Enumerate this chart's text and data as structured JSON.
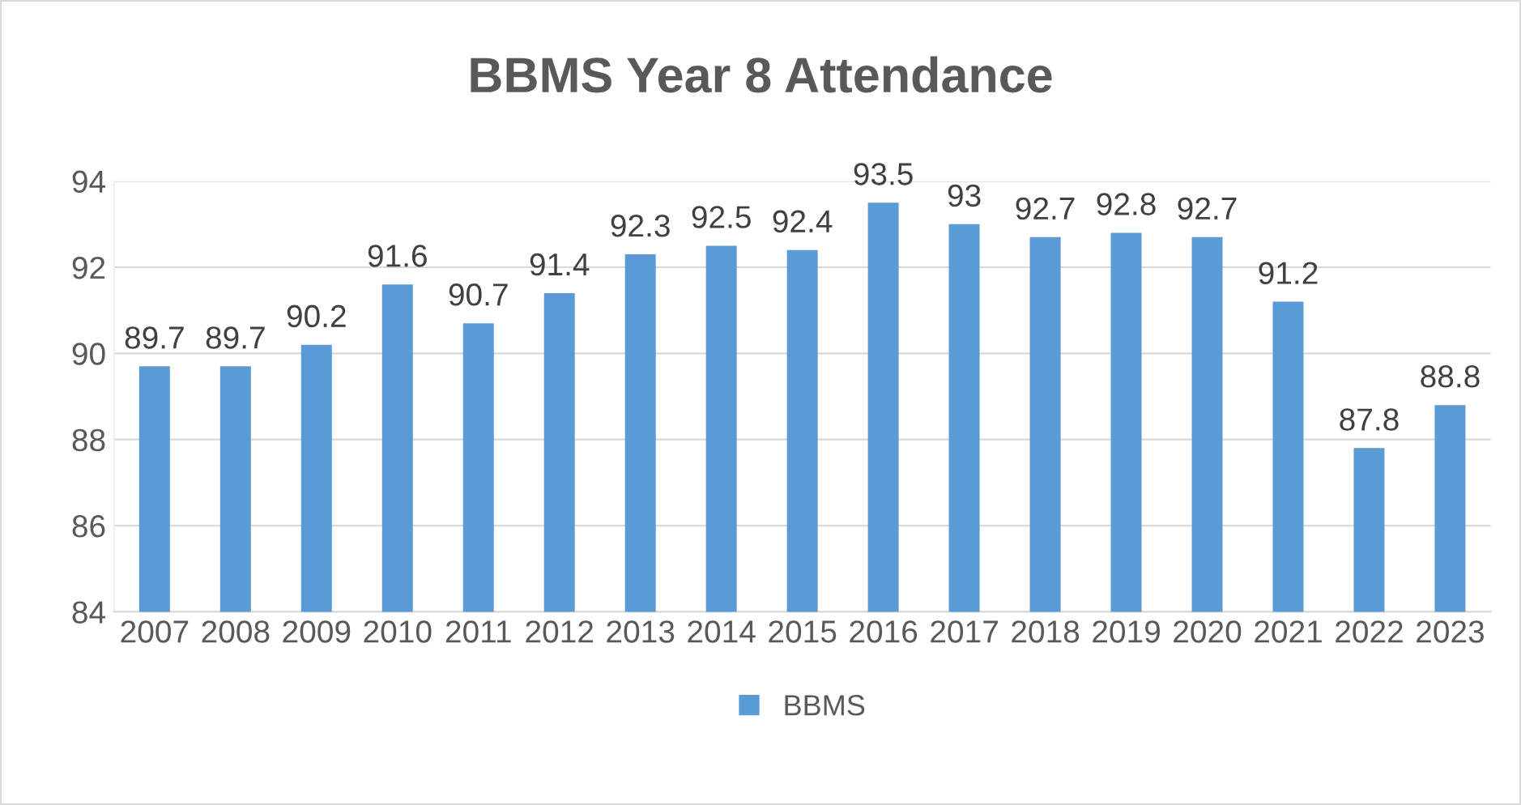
{
  "chart_data": {
    "type": "bar",
    "title": "BBMS Year 8 Attendance",
    "categories": [
      "2007",
      "2008",
      "2009",
      "2010",
      "2011",
      "2012",
      "2013",
      "2014",
      "2015",
      "2016",
      "2017",
      "2018",
      "2019",
      "2020",
      "2021",
      "2022",
      "2023"
    ],
    "series": [
      {
        "name": "BBMS",
        "color": "#5b9bd5",
        "values": [
          89.7,
          89.7,
          90.2,
          91.6,
          90.7,
          91.4,
          92.3,
          92.5,
          92.4,
          93.5,
          93,
          92.7,
          92.8,
          92.7,
          91.2,
          87.8,
          88.8
        ]
      }
    ],
    "ylim": [
      84,
      94
    ],
    "yticks": [
      84,
      86,
      88,
      90,
      92,
      94
    ],
    "grid": "y",
    "legend": "bottom",
    "data_labels": true
  }
}
